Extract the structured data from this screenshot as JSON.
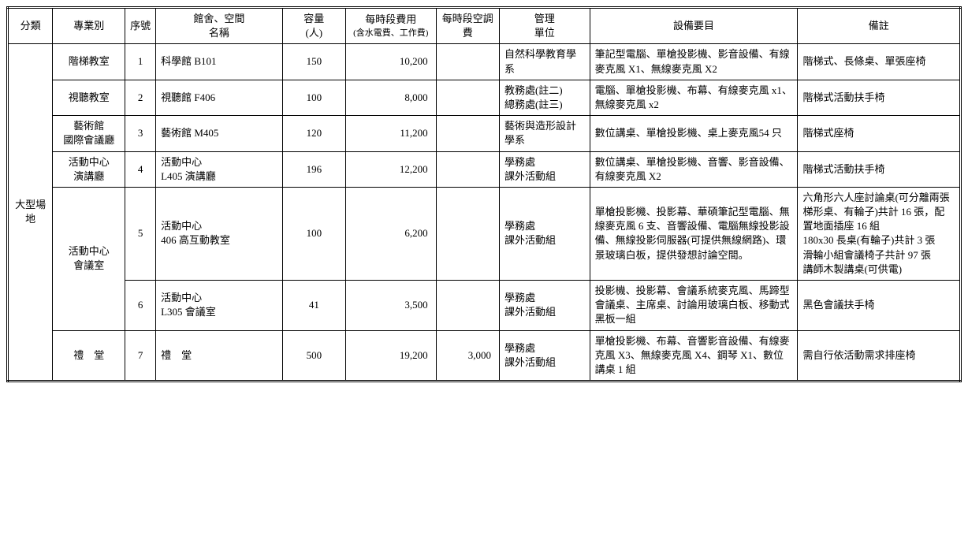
{
  "headers": {
    "h0": "分類",
    "h1": "專業別",
    "h2": "序號",
    "h3": "館舍、空間\n名稱",
    "h4": "容量\n(人)",
    "h5_top": "每時段費用",
    "h5_sub": "(含水電費、工作費)",
    "h6": "每時段空調費",
    "h7": "管理\n單位",
    "h8": "設備要目",
    "h9": "備註"
  },
  "cat": "大型場地",
  "rows": [
    {
      "prof": "階梯教室",
      "no": "1",
      "name": "科學館 B101",
      "cap": "150",
      "fee": "10,200",
      "ac": "",
      "mgmt": "自然科學教育學系",
      "equip": "筆記型電腦、單槍投影機、影音設備、有線麥克風 X1、無線麥克風 X2",
      "remark": "階梯式、長條桌、單張座椅"
    },
    {
      "prof": "視聽教室",
      "no": "2",
      "name": "視聽館 F406",
      "cap": "100",
      "fee": "8,000",
      "ac": "",
      "mgmt": "教務處(註二)\n總務處(註三)",
      "equip": "電腦、單槍投影機、布幕、有線麥克風 x1、無線麥克風 x2",
      "remark": "階梯式活動扶手椅"
    },
    {
      "prof": "藝術館\n國際會議廳",
      "no": "3",
      "name": "藝術館 M405",
      "cap": "120",
      "fee": "11,200",
      "ac": "",
      "mgmt": "藝術與造形設計學系",
      "equip": "數位講桌、單槍投影機、桌上麥克風54 只",
      "remark": "階梯式座椅"
    },
    {
      "prof": "活動中心\n演講廳",
      "no": "4",
      "name": "活動中心\nL405 演講廳",
      "cap": "196",
      "fee": "12,200",
      "ac": "",
      "mgmt": "學務處\n課外活動組",
      "equip": "數位講桌、單槍投影機、音響、影音設備、有線麥克風 X2",
      "remark": "階梯式活動扶手椅"
    },
    {
      "prof": "活動中心\n會議室",
      "no": "5",
      "name": "活動中心\n406 高互動教室",
      "cap": "100",
      "fee": "6,200",
      "ac": "",
      "mgmt": "學務處\n課外活動組",
      "equip": "單槍投影機、投影幕、華碩筆記型電腦、無線麥克風 6 支、音響設備、電腦無線投影設備、無線投影伺服器(可提供無線網路)、環景玻璃白板，提供發想討論空間。",
      "remark": "六角形六人座討論桌(可分離兩張梯形桌、有輪子)共計 16 張，配置地面插座 16 組\n180x30 長桌(有輪子)共計 3 張\n滑輪小組會議椅子共計 97 張\n講師木製講桌(可供電)"
    },
    {
      "no": "6",
      "name": "活動中心\nL305 會議室",
      "cap": "41",
      "fee": "3,500",
      "ac": "",
      "mgmt": "學務處\n課外活動組",
      "equip": "投影機、投影幕、會議系統麥克風、馬蹄型會議桌、主席桌、討論用玻璃白板、移動式黑板一組",
      "remark": "黑色會議扶手椅"
    },
    {
      "prof": "禮　堂",
      "no": "7",
      "name": "禮　堂",
      "cap": "500",
      "fee": "19,200",
      "ac": "3,000",
      "mgmt": "學務處\n課外活動組",
      "equip": "單槍投影機、布幕、音響影音設備、有線麥克風 X3、無線麥克風 X4、鋼琴 X1、數位講桌 1 組",
      "remark": "需自行依活動需求排座椅"
    }
  ]
}
